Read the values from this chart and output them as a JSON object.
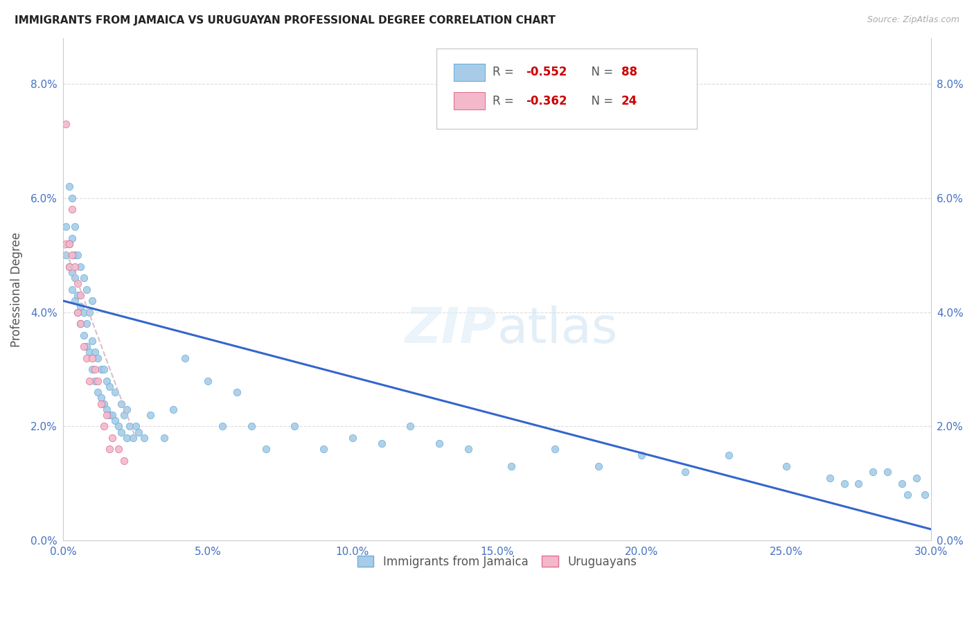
{
  "title": "IMMIGRANTS FROM JAMAICA VS URUGUAYAN PROFESSIONAL DEGREE CORRELATION CHART",
  "source": "Source: ZipAtlas.com",
  "xlim": [
    0.0,
    0.3
  ],
  "ylim": [
    0.0,
    0.088
  ],
  "ylabel": "Professional Degree",
  "legend_label1": "Immigrants from Jamaica",
  "legend_label2": "Uruguayans",
  "color_blue": "#a8cce8",
  "color_blue_edge": "#6aaed6",
  "color_pink": "#f4b8cb",
  "color_pink_edge": "#e07090",
  "trendline_blue": "#3366cc",
  "trendline_pink_r": 0.85,
  "trendline_pink_g": 0.75,
  "trendline_pink_b": 0.8,
  "watermark_color": "#ddeeff",
  "tick_color": "#4472c4",
  "grid_color": "#dddddd",
  "yticks": [
    0.0,
    0.02,
    0.04,
    0.06,
    0.08
  ],
  "xticks": [
    0.0,
    0.05,
    0.1,
    0.15,
    0.2,
    0.25,
    0.3
  ],
  "blue_x": [
    0.001,
    0.001,
    0.002,
    0.002,
    0.002,
    0.003,
    0.003,
    0.003,
    0.003,
    0.004,
    0.004,
    0.004,
    0.004,
    0.005,
    0.005,
    0.005,
    0.006,
    0.006,
    0.006,
    0.007,
    0.007,
    0.007,
    0.008,
    0.008,
    0.008,
    0.009,
    0.009,
    0.01,
    0.01,
    0.01,
    0.011,
    0.011,
    0.012,
    0.012,
    0.013,
    0.013,
    0.014,
    0.014,
    0.015,
    0.015,
    0.016,
    0.016,
    0.017,
    0.018,
    0.018,
    0.019,
    0.02,
    0.02,
    0.021,
    0.022,
    0.022,
    0.023,
    0.024,
    0.025,
    0.026,
    0.028,
    0.03,
    0.035,
    0.038,
    0.042,
    0.05,
    0.055,
    0.06,
    0.065,
    0.07,
    0.08,
    0.09,
    0.1,
    0.11,
    0.12,
    0.13,
    0.14,
    0.155,
    0.17,
    0.185,
    0.2,
    0.215,
    0.23,
    0.25,
    0.265,
    0.27,
    0.275,
    0.28,
    0.285,
    0.29,
    0.292,
    0.295,
    0.298
  ],
  "blue_y": [
    0.05,
    0.055,
    0.048,
    0.052,
    0.062,
    0.044,
    0.047,
    0.053,
    0.06,
    0.042,
    0.046,
    0.05,
    0.055,
    0.04,
    0.043,
    0.05,
    0.038,
    0.041,
    0.048,
    0.036,
    0.04,
    0.046,
    0.034,
    0.038,
    0.044,
    0.033,
    0.04,
    0.03,
    0.035,
    0.042,
    0.028,
    0.033,
    0.026,
    0.032,
    0.025,
    0.03,
    0.024,
    0.03,
    0.023,
    0.028,
    0.022,
    0.027,
    0.022,
    0.021,
    0.026,
    0.02,
    0.019,
    0.024,
    0.022,
    0.018,
    0.023,
    0.02,
    0.018,
    0.02,
    0.019,
    0.018,
    0.022,
    0.018,
    0.023,
    0.032,
    0.028,
    0.02,
    0.026,
    0.02,
    0.016,
    0.02,
    0.016,
    0.018,
    0.017,
    0.02,
    0.017,
    0.016,
    0.013,
    0.016,
    0.013,
    0.015,
    0.012,
    0.015,
    0.013,
    0.011,
    0.01,
    0.01,
    0.012,
    0.012,
    0.01,
    0.008,
    0.011,
    0.008
  ],
  "pink_x": [
    0.001,
    0.001,
    0.002,
    0.002,
    0.003,
    0.003,
    0.004,
    0.005,
    0.005,
    0.006,
    0.006,
    0.007,
    0.008,
    0.009,
    0.01,
    0.011,
    0.012,
    0.013,
    0.014,
    0.015,
    0.016,
    0.017,
    0.019,
    0.021
  ],
  "pink_y": [
    0.073,
    0.052,
    0.052,
    0.048,
    0.05,
    0.058,
    0.048,
    0.04,
    0.045,
    0.038,
    0.043,
    0.034,
    0.032,
    0.028,
    0.032,
    0.03,
    0.028,
    0.024,
    0.02,
    0.022,
    0.016,
    0.018,
    0.016,
    0.014
  ],
  "blue_trend_x": [
    0.0,
    0.3
  ],
  "blue_trend_y": [
    0.042,
    0.002
  ],
  "pink_trend_x": [
    0.0,
    0.025
  ],
  "pink_trend_y": [
    0.052,
    0.018
  ]
}
